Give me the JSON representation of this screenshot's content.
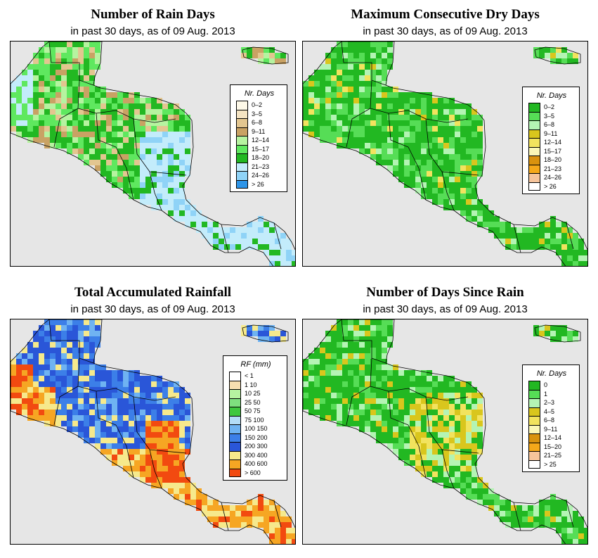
{
  "panels": [
    {
      "title": "Number of Rain Days",
      "subtitle": "in past 30 days, as of  09 Aug. 2013",
      "legend": {
        "title": "Nr. Days",
        "items": [
          {
            "label": "0–2",
            "color": "#fdf8e8"
          },
          {
            "label": "3–5",
            "color": "#f5e4c3"
          },
          {
            "label": "6–8",
            "color": "#e3c690"
          },
          {
            "label": "9–11",
            "color": "#c9a264"
          },
          {
            "label": "12–14",
            "color": "#b6f3a0"
          },
          {
            "label": "15–17",
            "color": "#5fe85f"
          },
          {
            "label": "18–20",
            "color": "#22b822"
          },
          {
            "label": "21–23",
            "color": "#c3ecfb"
          },
          {
            "label": "24–26",
            "color": "#8fd3f7"
          },
          {
            "label": "> 26",
            "color": "#2e95e8"
          }
        ]
      }
    },
    {
      "title": "Maximum Consecutive Dry Days",
      "subtitle": "in past 30 days, as of  09 Aug. 2013",
      "legend": {
        "title": "Nr. Days",
        "items": [
          {
            "label": "0–2",
            "color": "#22b822"
          },
          {
            "label": "3–5",
            "color": "#56dd56"
          },
          {
            "label": "6–8",
            "color": "#b4f4b4"
          },
          {
            "label": "9–11",
            "color": "#d9c61d"
          },
          {
            "label": "12–14",
            "color": "#f2e35e"
          },
          {
            "label": "15–17",
            "color": "#fbf7b5"
          },
          {
            "label": "18–20",
            "color": "#d9920e"
          },
          {
            "label": "21–23",
            "color": "#f5a81a"
          },
          {
            "label": "24–26",
            "color": "#f6c49b"
          },
          {
            "label": "> 26",
            "color": "#ffffff"
          }
        ]
      }
    },
    {
      "title": "Total Accumulated Rainfall",
      "subtitle": "in past 30 days, as of  09 Aug. 2013",
      "legend": {
        "title": "RF (mm)",
        "items": [
          {
            "label": "< 1",
            "color": "#ffffff"
          },
          {
            "label": "1   10",
            "color": "#f6dfb0"
          },
          {
            "label": "10   25",
            "color": "#b6f3a0"
          },
          {
            "label": "25   50",
            "color": "#7fe07f"
          },
          {
            "label": "50   75",
            "color": "#3fc83f"
          },
          {
            "label": "75   100",
            "color": "#b3ddf7"
          },
          {
            "label": "100   150",
            "color": "#6fb3f2"
          },
          {
            "label": "150   200",
            "color": "#3c7fe8"
          },
          {
            "label": "200   300",
            "color": "#2a56d8"
          },
          {
            "label": "300   400",
            "color": "#f6e98c"
          },
          {
            "label": "400   600",
            "color": "#f6a623"
          },
          {
            "label": "> 600",
            "color": "#f24a10"
          }
        ]
      }
    },
    {
      "title": "Number of Days Since Rain",
      "subtitle": "in past 30 days, as of  09 Aug. 2013",
      "legend": {
        "title": "Nr. Days",
        "items": [
          {
            "label": "0",
            "color": "#22b822"
          },
          {
            "label": "1",
            "color": "#56dd56"
          },
          {
            "label": "2–3",
            "color": "#b4f4b4"
          },
          {
            "label": "4–5",
            "color": "#d9c61d"
          },
          {
            "label": "6–8",
            "color": "#f2e35e"
          },
          {
            "label": "9–11",
            "color": "#fbf7b5"
          },
          {
            "label": "12–14",
            "color": "#d9920e"
          },
          {
            "label": "15–20",
            "color": "#f5a81a"
          },
          {
            "label": "21–25",
            "color": "#f6c49b"
          },
          {
            "label": "> 25",
            "color": "#ffffff"
          }
        ]
      }
    }
  ],
  "colors": {
    "sea": "#e6e6e6",
    "border": "#000000"
  }
}
